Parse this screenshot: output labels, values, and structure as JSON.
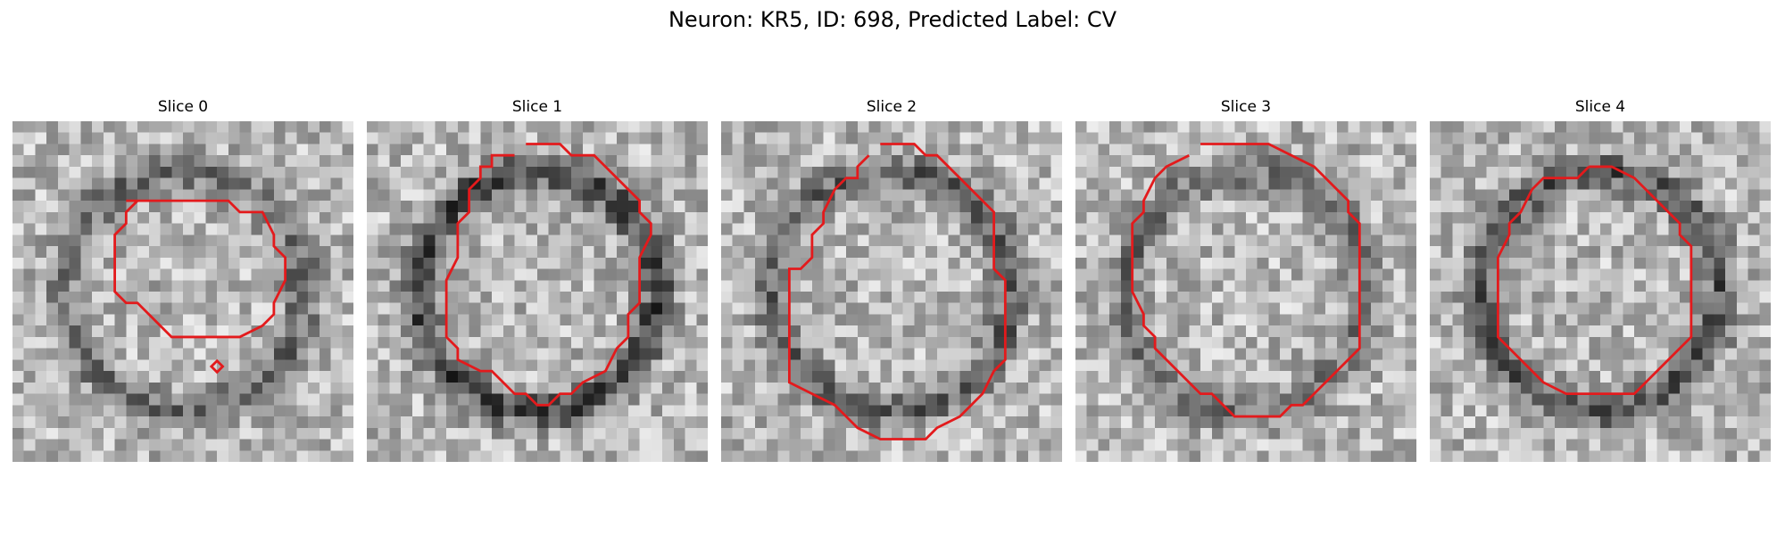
{
  "figure": {
    "title": "Neuron: KR5, ID: 698, Predicted Label: CV"
  },
  "slices": [
    {
      "label": "Slice 0",
      "seed": 11,
      "ring": 0.55,
      "contour_color": "#e31a1c"
    },
    {
      "label": "Slice 1",
      "seed": 23,
      "ring": 0.8,
      "contour_color": "#e31a1c"
    },
    {
      "label": "Slice 2",
      "seed": 37,
      "ring": 0.6,
      "contour_color": "#e31a1c"
    },
    {
      "label": "Slice 3",
      "seed": 41,
      "ring": 0.5,
      "contour_color": "#e31a1c"
    },
    {
      "label": "Slice 4",
      "seed": 53,
      "ring": 0.7,
      "contour_color": "#e31a1c"
    }
  ]
}
